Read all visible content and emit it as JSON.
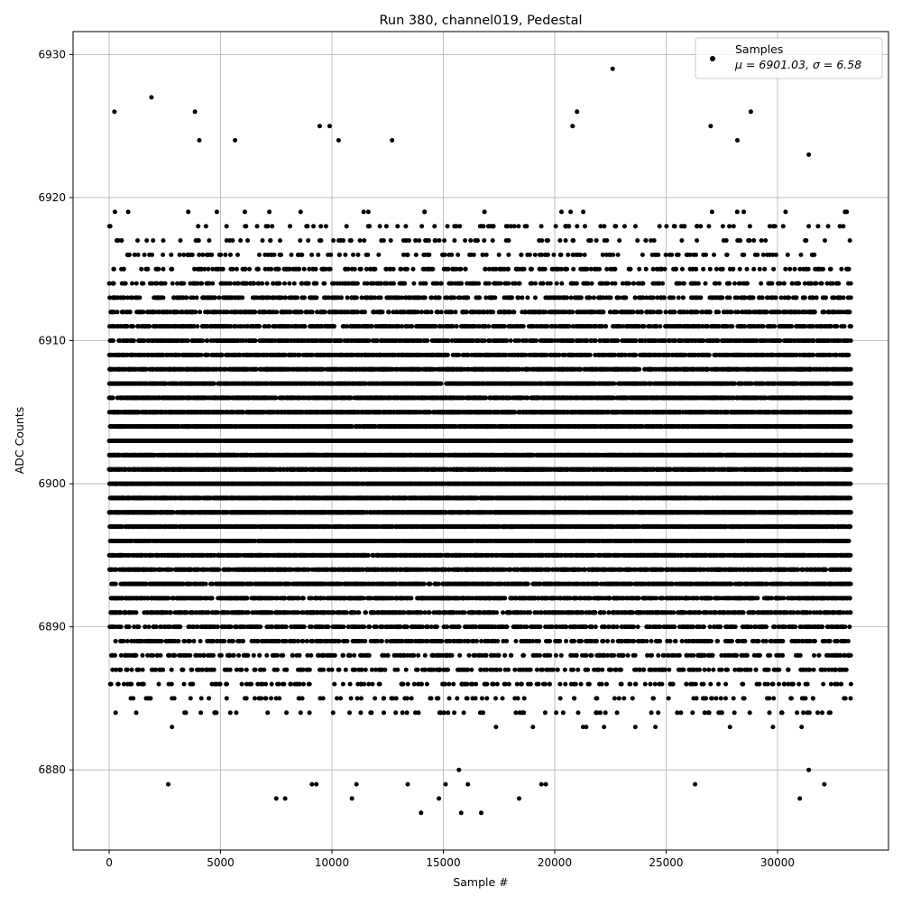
{
  "chart_data": {
    "type": "scatter",
    "title": "Run 380, channel019, Pedestal",
    "xlabel": "Sample #",
    "ylabel": "ADC Counts",
    "xlim": [
      -1620,
      34980
    ],
    "ylim": [
      6874.4,
      6931.6
    ],
    "xticks": [
      0,
      5000,
      10000,
      15000,
      20000,
      25000,
      30000
    ],
    "yticks": [
      6880,
      6890,
      6900,
      6910,
      6920,
      6930
    ],
    "grid": true,
    "legend": {
      "placement": "top-right",
      "entries": [
        {
          "name": "Samples",
          "stats": "μ = 6901.03, σ = 6.58"
        }
      ]
    },
    "series": [
      {
        "name": "Samples",
        "color": "#000000",
        "marker": "circle",
        "n_samples": 33300,
        "mean": 6901.03,
        "sigma": 6.58,
        "value_step": 1,
        "extreme_points": [
          [
            240,
            6926
          ],
          [
            1900,
            6927
          ],
          [
            3850,
            6926
          ],
          [
            4050,
            6924
          ],
          [
            5650,
            6924
          ],
          [
            9450,
            6925
          ],
          [
            9900,
            6925
          ],
          [
            10300,
            6924
          ],
          [
            12700,
            6924
          ],
          [
            20800,
            6925
          ],
          [
            21000,
            6926
          ],
          [
            22600,
            6929
          ],
          [
            27000,
            6925
          ],
          [
            28800,
            6926
          ],
          [
            28200,
            6924
          ],
          [
            31400,
            6923
          ],
          [
            2650,
            6879
          ],
          [
            7500,
            6878
          ],
          [
            7900,
            6878
          ],
          [
            9100,
            6879
          ],
          [
            9300,
            6879
          ],
          [
            10900,
            6878
          ],
          [
            11100,
            6879
          ],
          [
            14000,
            6877
          ],
          [
            13400,
            6879
          ],
          [
            14800,
            6878
          ],
          [
            15100,
            6879
          ],
          [
            15800,
            6877
          ],
          [
            15700,
            6880
          ],
          [
            16100,
            6879
          ],
          [
            16700,
            6877
          ],
          [
            18400,
            6878
          ],
          [
            19400,
            6879
          ],
          [
            19600,
            6879
          ],
          [
            26300,
            6879
          ],
          [
            31000,
            6878
          ],
          [
            31400,
            6880
          ],
          [
            32100,
            6879
          ]
        ]
      }
    ]
  }
}
